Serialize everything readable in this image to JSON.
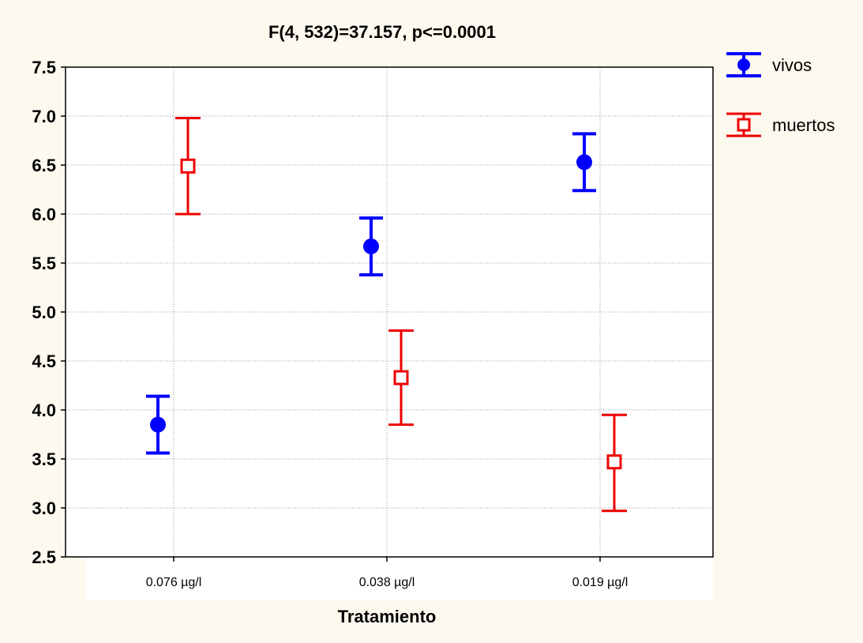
{
  "chart_data": {
    "type": "scatter",
    "title": "F(4, 532)=37.157, p<=0.0001",
    "xlabel": "Tratamiento",
    "ylabel": "",
    "categories": [
      "0.076 µg/l",
      "0.038 µg/l",
      "0.019 µg/l"
    ],
    "ylim": [
      2.5,
      7.5
    ],
    "yticks": [
      "2.5",
      "3.0",
      "3.5",
      "4.0",
      "4.5",
      "5.0",
      "5.5",
      "6.0",
      "6.5",
      "7.0",
      "7.5"
    ],
    "grid": true,
    "legend_position": "top-right",
    "series": [
      {
        "name": "vivos",
        "color": "#0000ff",
        "marker": "filled-circle",
        "values": [
          3.85,
          5.67,
          6.53
        ],
        "lower": [
          3.56,
          5.38,
          6.24
        ],
        "upper": [
          4.14,
          5.96,
          6.82
        ]
      },
      {
        "name": "muertos",
        "color": "#ee0000",
        "marker": "open-square",
        "values": [
          6.49,
          4.33,
          3.47
        ],
        "lower": [
          6.0,
          3.85,
          2.97
        ],
        "upper": [
          6.98,
          4.81,
          3.95
        ]
      }
    ]
  }
}
